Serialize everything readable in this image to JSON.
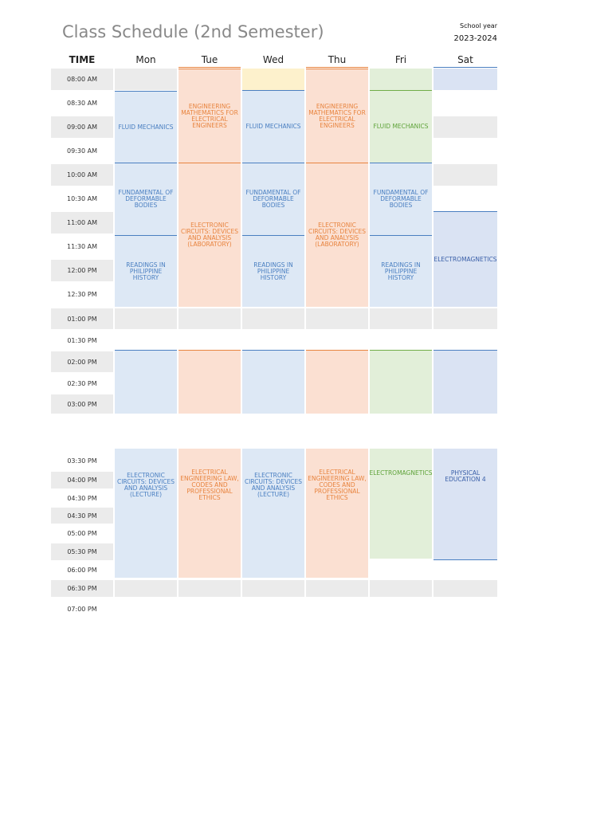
{
  "title": "Class Schedule (2nd Semester)",
  "school_year": {
    "label": "School year",
    "value": "2023-2024"
  },
  "headers": {
    "time": "TIME",
    "days": [
      "Mon",
      "Tue",
      "Wed",
      "Thu",
      "Fri",
      "Sat"
    ]
  },
  "colors": {
    "blue_fill": "#dde8f5",
    "blue_line": "#4a7fc1",
    "blue_text": "#4a7fc1",
    "orange_fill": "#fbe0d2",
    "orange_line": "#e8843f",
    "orange_text": "#e8843f",
    "green_fill": "#e2efd9",
    "green_line": "#70ad47",
    "green_text": "#5fa33a",
    "yellow_fill": "#fdf1cc",
    "gray_fill": "#ebebeb",
    "sat_fill": "#dae3f3"
  },
  "times_block1": [
    "08:00 AM",
    "08:30 AM",
    "09:00 AM",
    "09:30 AM",
    "10:00 AM",
    "10:30 AM",
    "11:00 AM",
    "11:30 AM",
    "12:00 PM",
    "12:30 PM",
    "01:00 PM",
    "01:30 PM",
    "02:00 PM",
    "02:30 PM",
    "03:00 PM"
  ],
  "times_block2": [
    "03:30 PM",
    "04:00 PM",
    "04:30 PM",
    "04:30 PM",
    "05:00 PM",
    "05:30 PM",
    "06:00 PM",
    "06:30 PM",
    "07:00 PM"
  ],
  "classes": {
    "mon_fluid": "FLUID MECHANICS",
    "tue_math": "ENGINEERING MATHEMATICS FOR ELECTRICAL ENGINEERS",
    "wed_fluid": "FLUID MECHANICS",
    "thu_math": "ENGINEERING MATHEMATICS FOR ELECTRICAL ENGINEERS",
    "fri_fluid": "FLUID MECHANICS",
    "mon_fund": "FUNDAMENTAL OF DEFORMABLE BODIES",
    "wed_fund": "FUNDAMENTAL OF DEFORMABLE BODIES",
    "fri_fund": "FUNDAMENTAL OF DEFORMABLE BODIES",
    "tue_lab": "ELECTRONIC CIRCUITS: DEVICES AND ANALYSIS (LABORATORY)",
    "thu_lab": "ELECTRONIC CIRCUITS: DEVICES AND ANALYSIS (LABORATORY)",
    "sat_em": "ELECTROMAGNETICS",
    "mon_readings": "READINGS IN PHILIPPINE HISTORY",
    "wed_readings": "READINGS IN PHILIPPINE HISTORY",
    "fri_readings": "READINGS IN PHILIPPINE HISTORY",
    "mon_lec": "ELECTRONIC CIRCUITS: DEVICES AND ANALYSIS (LECTURE)",
    "tue_law": "ELECTRICAL ENGINEERING LAW, CODES AND PROFESSIONAL ETHICS",
    "wed_lec": "ELECTRONIC CIRCUITS: DEVICES AND ANALYSIS (LECTURE)",
    "thu_law": "ELECTRICAL ENGINEERING LAW, CODES AND PROFESSIONAL ETHICS",
    "fri_em": "ELECTROMAGNETICS",
    "sat_pe": "PHYSICAL EDUCATION 4"
  }
}
